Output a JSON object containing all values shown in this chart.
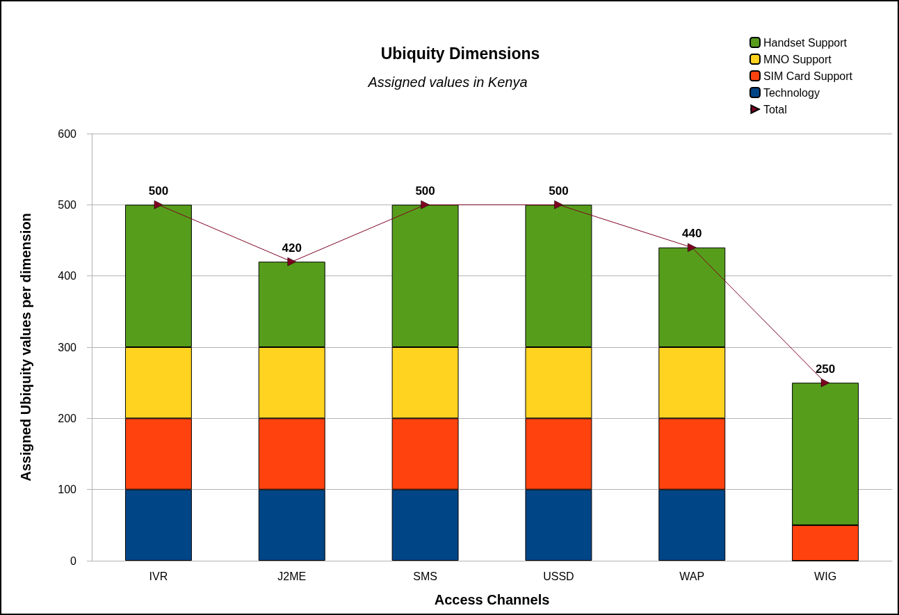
{
  "chart_data": {
    "type": "bar",
    "title": "Ubiquity Dimensions",
    "subtitle": "Assigned values in Kenya",
    "xlabel": "Access Channels",
    "ylabel": "Assigned Ubiquity values per dimension",
    "categories": [
      "IVR",
      "J2ME",
      "SMS",
      "USSD",
      "WAP",
      "WIG"
    ],
    "stacked": true,
    "series": [
      {
        "name": "Technology",
        "color": "#004586",
        "values": [
          100,
          100,
          100,
          100,
          100,
          0
        ]
      },
      {
        "name": "SIM Card Support",
        "color": "#ff420e",
        "values": [
          100,
          100,
          100,
          100,
          100,
          50
        ]
      },
      {
        "name": "MNO Support",
        "color": "#ffd320",
        "values": [
          100,
          100,
          100,
          100,
          100,
          0
        ]
      },
      {
        "name": "Handset Support",
        "color": "#579d1c",
        "values": [
          200,
          120,
          200,
          200,
          140,
          200
        ]
      },
      {
        "name": "Total",
        "type": "line",
        "color": "#7e0021",
        "marker": "triangle",
        "values": [
          500,
          420,
          500,
          500,
          440,
          250
        ],
        "value_labels": [
          "500",
          "420",
          "500",
          "500",
          "440",
          "250"
        ]
      }
    ],
    "ylim": [
      0,
      600
    ],
    "yticks": [
      0,
      100,
      200,
      300,
      400,
      500,
      600
    ],
    "grid": "y",
    "legend": "top right"
  }
}
